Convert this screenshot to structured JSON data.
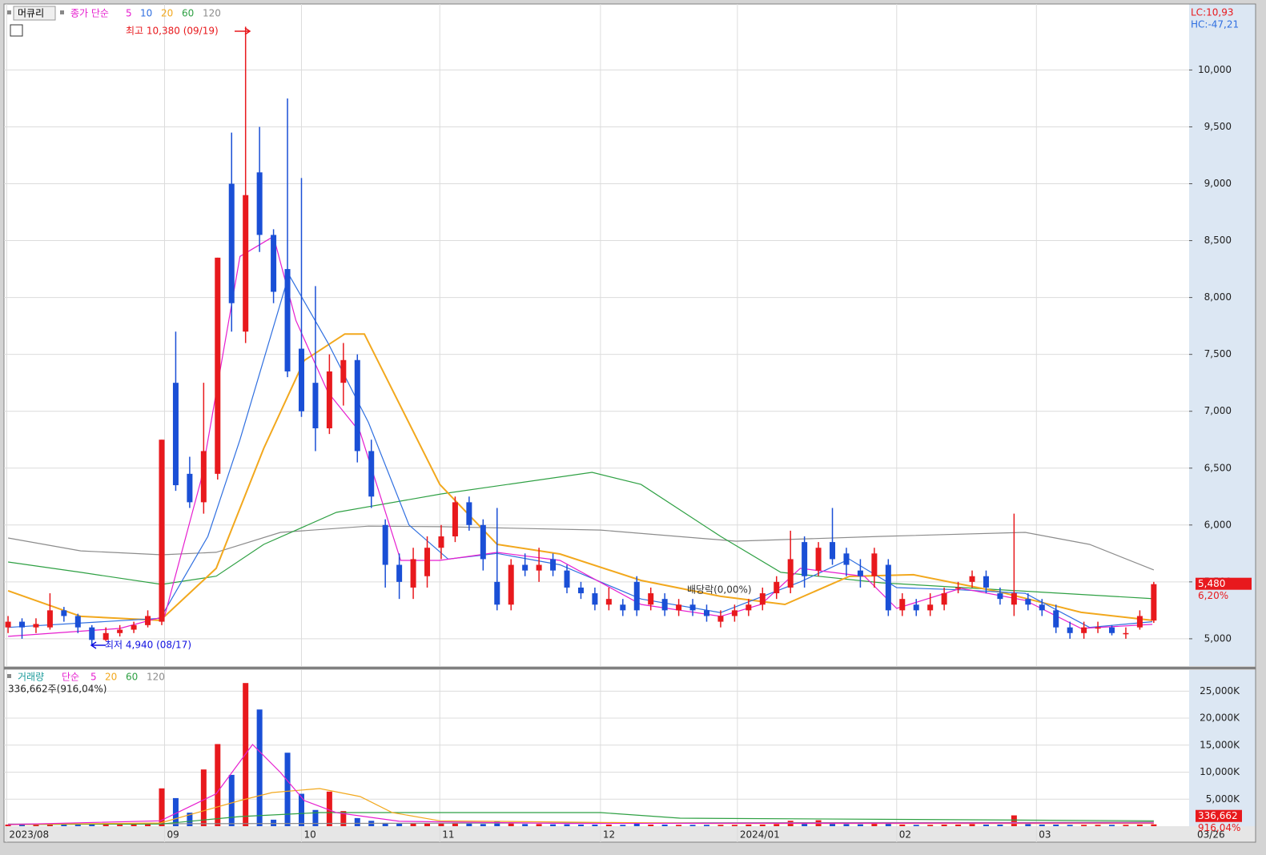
{
  "toolbar": {
    "name": "머큐리"
  },
  "info": {
    "lc": "LC:10,93",
    "hc": "HC:-47,21"
  },
  "chart_data": [
    {
      "type": "candlestick",
      "legend_title": "종가 단순",
      "up_color": "#e8191d",
      "down_color": "#1a4fd6",
      "open": [
        5100,
        5150,
        5100,
        5100,
        5250,
        5200,
        5100,
        4990,
        5050,
        5080,
        5120,
        5150,
        7250,
        6450,
        6200,
        6450,
        9000,
        7700,
        9100,
        8550,
        8250,
        7550,
        7250,
        6850,
        7250,
        7450,
        6650,
        6000,
        5650,
        5450,
        5550,
        5800,
        5900,
        6200,
        6000,
        5500,
        5300,
        5650,
        5600,
        5700,
        5600,
        5450,
        5400,
        5300,
        5300,
        5500,
        5300,
        5350,
        5250,
        5300,
        5250,
        5150,
        5200,
        5250,
        5300,
        5400,
        5450,
        5850,
        5600,
        5850,
        5750,
        5600,
        5550,
        5650,
        5250,
        5300,
        5250,
        5300,
        5450,
        5500,
        5550,
        5400,
        5300,
        5350,
        5300,
        5250,
        5100,
        5050,
        5100,
        5100,
        5050,
        5100,
        5160
      ],
      "high": [
        5200,
        5180,
        5180,
        5400,
        5280,
        5220,
        5120,
        5100,
        5120,
        5150,
        5250,
        6750,
        7700,
        6600,
        7250,
        8350,
        9450,
        10380,
        9500,
        8600,
        9750,
        9050,
        8100,
        7500,
        7600,
        7500,
        6750,
        6050,
        5750,
        5800,
        5900,
        6000,
        6250,
        6250,
        6050,
        6150,
        5700,
        5750,
        5800,
        5750,
        5650,
        5500,
        5450,
        5450,
        5350,
        5550,
        5450,
        5400,
        5350,
        5350,
        5300,
        5250,
        5300,
        5350,
        5450,
        5550,
        5950,
        5900,
        5850,
        6150,
        5800,
        5700,
        5800,
        5700,
        5400,
        5350,
        5400,
        5450,
        5500,
        5600,
        5600,
        5450,
        6100,
        5400,
        5350,
        5300,
        5150,
        5150,
        5150,
        5120,
        5100,
        5250,
        5500
      ],
      "low": [
        5050,
        5000,
        5050,
        5080,
        5150,
        5050,
        4940,
        4980,
        5020,
        5050,
        5100,
        5120,
        6300,
        6150,
        6100,
        6400,
        7700,
        7600,
        8400,
        7950,
        7300,
        6950,
        6650,
        6800,
        7050,
        6550,
        6150,
        5450,
        5350,
        5350,
        5450,
        5700,
        5850,
        5950,
        5600,
        5250,
        5250,
        5550,
        5500,
        5550,
        5400,
        5350,
        5250,
        5250,
        5200,
        5200,
        5250,
        5200,
        5200,
        5200,
        5150,
        5100,
        5150,
        5200,
        5250,
        5350,
        5400,
        5450,
        5550,
        5650,
        5550,
        5450,
        5450,
        5200,
        5200,
        5200,
        5200,
        5250,
        5400,
        5450,
        5400,
        5300,
        5200,
        5250,
        5200,
        5050,
        5000,
        5000,
        5050,
        5030,
        5000,
        5080,
        5140
      ],
      "close": [
        5150,
        5100,
        5130,
        5250,
        5200,
        5100,
        4990,
        5050,
        5080,
        5120,
        5200,
        6750,
        6350,
        6200,
        6650,
        8350,
        7950,
        8900,
        8550,
        8050,
        7350,
        7000,
        6850,
        7350,
        7450,
        6650,
        6250,
        5650,
        5500,
        5700,
        5800,
        5900,
        6200,
        6000,
        5700,
        5300,
        5650,
        5600,
        5650,
        5600,
        5450,
        5400,
        5300,
        5350,
        5250,
        5250,
        5400,
        5250,
        5300,
        5250,
        5200,
        5200,
        5250,
        5300,
        5400,
        5500,
        5700,
        5550,
        5800,
        5700,
        5650,
        5550,
        5750,
        5250,
        5350,
        5250,
        5300,
        5400,
        5450,
        5550,
        5450,
        5350,
        5400,
        5300,
        5250,
        5100,
        5050,
        5100,
        5100,
        5050,
        5050,
        5200,
        5480
      ],
      "series": [
        {
          "name": "5",
          "color": "#e61ecf",
          "x": [
            0,
            8,
            11.2,
            13.8,
            16.6,
            19,
            20.6,
            22.9,
            25.2,
            28.1,
            30.9,
            35,
            39.5,
            45.3,
            51,
            53.9,
            56.7,
            61.3,
            63.6,
            68.2,
            72.8,
            76.8,
            81.9
          ],
          "values": [
            5021,
            5091,
            5197,
            6392,
            8361,
            8537,
            7799,
            7166,
            6814,
            5689,
            5689,
            5759,
            5689,
            5302,
            5197,
            5302,
            5619,
            5548,
            5267,
            5443,
            5338,
            5091,
            5127
          ]
        },
        {
          "name": "10",
          "color": "#2f6fe0",
          "x": [
            0,
            10.9,
            14.3,
            16.6,
            20.1,
            22.9,
            25.8,
            28.7,
            31.5,
            35,
            39.5,
            45.3,
            51,
            56.7,
            60.2,
            63.6,
            68.2,
            72.8,
            77.4,
            81.9
          ],
          "values": [
            5100,
            5180,
            5900,
            6750,
            8200,
            7600,
            6900,
            6000,
            5700,
            5750,
            5650,
            5350,
            5230,
            5500,
            5700,
            5450,
            5430,
            5400,
            5100,
            5150
          ]
        },
        {
          "name": "20",
          "color": "#f2a81d",
          "x": [
            0,
            5.2,
            10.9,
            14.9,
            18.3,
            21.2,
            24.1,
            25.5,
            30.9,
            35,
            39.5,
            45.3,
            51,
            55.6,
            60.2,
            64.8,
            71.1,
            76.8,
            81.9
          ],
          "values": [
            5422,
            5197,
            5162,
            5619,
            6674,
            7447,
            7679,
            7679,
            6357,
            5830,
            5745,
            5513,
            5373,
            5302,
            5548,
            5563,
            5408,
            5232,
            5162
          ]
        },
        {
          "name": "60",
          "color": "#2ea043",
          "x": [
            0,
            5.2,
            11,
            14.9,
            18.3,
            23.5,
            31,
            41.8,
            45.3,
            51,
            55.3,
            62.5,
            82
          ],
          "values": [
            5675,
            5584,
            5478,
            5550,
            5830,
            6111,
            6273,
            6463,
            6357,
            5900,
            5584,
            5492,
            5352
          ]
        },
        {
          "name": "120",
          "color": "#8c8c8c",
          "x": [
            0,
            5.2,
            11,
            14.9,
            19.5,
            25.8,
            31,
            42.4,
            52.1,
            62.5,
            72.8,
            77.4,
            82
          ],
          "values": [
            5886,
            5773,
            5738,
            5760,
            5935,
            5990,
            5985,
            5956,
            5858,
            5900,
            5935,
            5830,
            5605
          ]
        }
      ],
      "xlim": [
        -0.29,
        84.53
      ],
      "ylim": [
        4760,
        10580
      ],
      "yticks": [
        {
          "value": 5000,
          "label": "5,000"
        },
        {
          "value": 5500,
          "label": "5,500"
        },
        {
          "value": 6000,
          "label": "6,000"
        },
        {
          "value": 6500,
          "label": "6,500"
        },
        {
          "value": 7000,
          "label": "7,000"
        },
        {
          "value": 7500,
          "label": "7,500"
        },
        {
          "value": 8000,
          "label": "8,000"
        },
        {
          "value": 8500,
          "label": "8,500"
        },
        {
          "value": 9000,
          "label": "9,000"
        },
        {
          "value": 9500,
          "label": "9,500"
        },
        {
          "value": 10000,
          "label": "10,000"
        }
      ],
      "max_label": "최고 10,380 (09/19)",
      "min_label": "최저 4,940 (08/17)",
      "annotation": "배당락(0,00%)",
      "last_price": {
        "value": 5480,
        "label": "5,480"
      },
      "last_change": "6,20%"
    },
    {
      "type": "bar",
      "legend_title": "거래량",
      "legend_label": "단순",
      "summary": "336,662주(916,04%)",
      "values": [
        300,
        250,
        300,
        400,
        300,
        280,
        350,
        300,
        280,
        300,
        350,
        7000,
        5200,
        2500,
        10500,
        15200,
        9500,
        26500,
        21600,
        1200,
        13600,
        6000,
        3000,
        6400,
        2800,
        1500,
        1000,
        600,
        500,
        500,
        450,
        500,
        600,
        500,
        400,
        900,
        500,
        400,
        400,
        350,
        350,
        300,
        300,
        300,
        250,
        500,
        300,
        300,
        250,
        250,
        250,
        250,
        250,
        300,
        300,
        400,
        1000,
        600,
        1100,
        700,
        400,
        350,
        500,
        600,
        300,
        250,
        250,
        300,
        300,
        400,
        300,
        300,
        2000,
        400,
        300,
        300,
        250,
        250,
        250,
        250,
        250,
        300,
        337
      ],
      "series": [
        {
          "name": "5",
          "color": "#e61ecf",
          "x": [
            0,
            10.9,
            14.9,
            17.5,
            19.5,
            21.2,
            23.5,
            28,
            40,
            82
          ],
          "values": [
            300,
            1000,
            6000,
            15111,
            9926,
            4740,
            2500,
            900,
            500,
            600
          ]
        },
        {
          "name": "20",
          "color": "#f2a81d",
          "x": [
            0,
            10.9,
            16.6,
            18.9,
            22.3,
            25.2,
            27.5,
            30.9,
            50,
            82
          ],
          "values": [
            300,
            600,
            4740,
            6222,
            6963,
            5481,
            2518,
            1000,
            500,
            500
          ]
        },
        {
          "name": "60",
          "color": "#2ea043",
          "x": [
            0,
            10.9,
            16.6,
            22.3,
            42.4,
            48.1,
            82
          ],
          "values": [
            300,
            400,
            1778,
            2518,
            2518,
            1481,
            1000
          ]
        },
        {
          "name": "120",
          "color": "#8c8c8c",
          "x": [
            0,
            40,
            73,
            82
          ],
          "values": [
            400,
            600,
            700,
            800
          ]
        }
      ],
      "ylim": [
        0,
        28900
      ],
      "yticks": [
        {
          "value": 5000,
          "label": "5,000K"
        },
        {
          "value": 10000,
          "label": "10,000K"
        },
        {
          "value": 15000,
          "label": "15,000K"
        },
        {
          "value": 20000,
          "label": "20,000K"
        },
        {
          "value": 25000,
          "label": "25,000K"
        }
      ],
      "xlim": [
        -0.29,
        84.53
      ],
      "xticks": [
        {
          "value": -0.1,
          "label": "2023/08"
        },
        {
          "value": 11.2,
          "label": "09"
        },
        {
          "value": 21,
          "label": "10"
        },
        {
          "value": 30.9,
          "label": "11"
        },
        {
          "value": 42.4,
          "label": "12"
        },
        {
          "value": 52.2,
          "label": "2024/01"
        },
        {
          "value": 63.6,
          "label": "02"
        },
        {
          "value": 73.6,
          "label": "03"
        }
      ],
      "last_date": "03/26",
      "last_volume": {
        "value": 336.662,
        "label": "336,662"
      },
      "last_change": "916,04%"
    }
  ]
}
